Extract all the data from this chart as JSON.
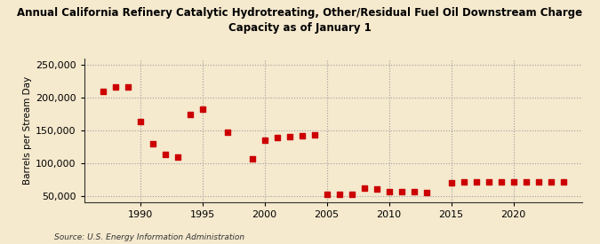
{
  "title": "Annual California Refinery Catalytic Hydrotreating, Other/Residual Fuel Oil Downstream Charge\nCapacity as of January 1",
  "ylabel": "Barrels per Stream Day",
  "source": "Source: U.S. Energy Information Administration",
  "background_color": "#f5e9ce",
  "plot_bg_color": "#f5e9ce",
  "marker_color": "#cc0000",
  "grid_color": "#999999",
  "years": [
    1987,
    1988,
    1989,
    1990,
    1991,
    1992,
    1993,
    1994,
    1995,
    1997,
    1999,
    2000,
    2001,
    2002,
    2003,
    2004,
    2005,
    2006,
    2007,
    2008,
    2009,
    2010,
    2011,
    2012,
    2013,
    2015,
    2016,
    2017,
    2018,
    2019,
    2020,
    2021,
    2022,
    2023,
    2024
  ],
  "values": [
    210000,
    216000,
    217000,
    164000,
    130000,
    114000,
    110000,
    175000,
    183000,
    148000,
    107000,
    135000,
    140000,
    141000,
    142000,
    143000,
    53000,
    53000,
    53000,
    62000,
    61000,
    56000,
    56000,
    56000,
    55000,
    70000,
    71000,
    71000,
    71000,
    71000,
    71000,
    71000,
    71000,
    71000,
    71000
  ],
  "ylim": [
    40000,
    260000
  ],
  "yticks": [
    50000,
    100000,
    150000,
    200000,
    250000
  ],
  "xlim": [
    1985.5,
    2025.5
  ],
  "xticks": [
    1990,
    1995,
    2000,
    2005,
    2010,
    2015,
    2020
  ]
}
